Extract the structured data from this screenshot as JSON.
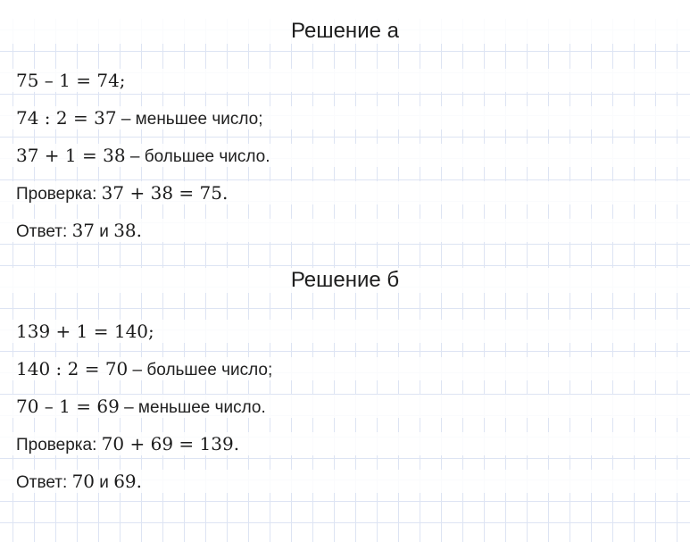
{
  "colors": {
    "paper": "#ffffff",
    "grid": "#dde4f3",
    "text": "#1c1c1c",
    "line_band": "rgba(255,255,255,0.84)"
  },
  "sections": [
    {
      "title": "Решение а",
      "lines": [
        {
          "parts": [
            {
              "t": "75 – 1 = 74;",
              "k": "math"
            }
          ]
        },
        {
          "parts": [
            {
              "t": "74 : 2 = 37",
              "k": "math"
            },
            {
              "t": " – меньшее число;",
              "k": "txt"
            }
          ]
        },
        {
          "parts": [
            {
              "t": "37 + 1 = 38",
              "k": "math"
            },
            {
              "t": " – большее число.",
              "k": "txt"
            }
          ]
        },
        {
          "parts": [
            {
              "t": "Проверка: ",
              "k": "txt"
            },
            {
              "t": "37 + 38 = 75.",
              "k": "math"
            }
          ]
        },
        {
          "parts": [
            {
              "t": "Ответ: ",
              "k": "txt"
            },
            {
              "t": "37",
              "k": "math"
            },
            {
              "t": " и ",
              "k": "txt"
            },
            {
              "t": "38.",
              "k": "math"
            }
          ]
        }
      ]
    },
    {
      "title": "Решение б",
      "lines": [
        {
          "parts": [
            {
              "t": "139 + 1 = 140;",
              "k": "math"
            }
          ]
        },
        {
          "parts": [
            {
              "t": "140 : 2 = 70",
              "k": "math"
            },
            {
              "t": " – большее число;",
              "k": "txt"
            }
          ]
        },
        {
          "parts": [
            {
              "t": "70 – 1 = 69",
              "k": "math"
            },
            {
              "t": " – меньшее число.",
              "k": "txt"
            }
          ]
        },
        {
          "parts": [
            {
              "t": "Проверка: ",
              "k": "txt"
            },
            {
              "t": "70 + 69 = 139.",
              "k": "math"
            }
          ]
        },
        {
          "parts": [
            {
              "t": "Ответ: ",
              "k": "txt"
            },
            {
              "t": "70",
              "k": "math"
            },
            {
              "t": " и ",
              "k": "txt"
            },
            {
              "t": "69.",
              "k": "math"
            }
          ]
        }
      ]
    }
  ]
}
